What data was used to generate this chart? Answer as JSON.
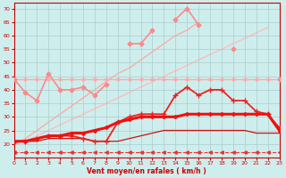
{
  "xlabel": "Vent moyen/en rafales ( km/h )",
  "background_color": "#ceeeed",
  "grid_color": "#aacccc",
  "xlim": [
    0,
    23
  ],
  "ylim": [
    15,
    72
  ],
  "yticks": [
    20,
    25,
    30,
    35,
    40,
    45,
    50,
    55,
    60,
    65,
    70
  ],
  "xticks": [
    0,
    1,
    2,
    3,
    4,
    5,
    6,
    7,
    8,
    9,
    10,
    11,
    12,
    13,
    14,
    15,
    16,
    17,
    18,
    19,
    20,
    21,
    22,
    23
  ],
  "x": [
    0,
    1,
    2,
    3,
    4,
    5,
    6,
    7,
    8,
    9,
    10,
    11,
    12,
    13,
    14,
    15,
    16,
    17,
    18,
    19,
    20,
    21,
    22,
    23
  ],
  "lines": [
    {
      "name": "dashed_bottom",
      "y": [
        17,
        17,
        17,
        17,
        17,
        17,
        17,
        17,
        17,
        17,
        17,
        17,
        17,
        17,
        17,
        17,
        17,
        17,
        17,
        17,
        17,
        17,
        17,
        17
      ],
      "color": "#ee3333",
      "lw": 0.8,
      "ls": "--",
      "marker": "<",
      "ms": 2.5,
      "zorder": 2
    },
    {
      "name": "pink_trend_upper",
      "y": [
        20,
        22,
        25,
        28,
        31,
        34,
        37,
        40,
        43,
        46,
        48,
        51,
        54,
        57,
        60,
        62,
        65,
        null,
        null,
        null,
        null,
        null,
        null,
        null
      ],
      "color": "#ffaaaa",
      "lw": 1.0,
      "ls": "-",
      "marker": null,
      "ms": 0,
      "zorder": 1
    },
    {
      "name": "pink_trend_lower",
      "y": [
        20,
        21,
        23,
        25,
        27,
        29,
        31,
        33,
        35,
        37,
        39,
        41,
        43,
        45,
        47,
        49,
        51,
        53,
        55,
        57,
        59,
        61,
        63,
        null
      ],
      "color": "#ffbbbb",
      "lw": 1.0,
      "ls": "-",
      "marker": null,
      "ms": 0,
      "zorder": 1
    },
    {
      "name": "pink_scatter_upper",
      "y": [
        44,
        39,
        36,
        46,
        40,
        40,
        41,
        38,
        42,
        null,
        57,
        57,
        62,
        null,
        66,
        70,
        64,
        null,
        null,
        55,
        null,
        null,
        null,
        44
      ],
      "color": "#ff8888",
      "lw": 1.2,
      "ls": "-",
      "marker": "D",
      "ms": 2.5,
      "zorder": 3
    },
    {
      "name": "pink_flat_line",
      "y": [
        44,
        44,
        44,
        44,
        44,
        44,
        44,
        44,
        44,
        44,
        44,
        44,
        44,
        44,
        44,
        44,
        44,
        44,
        44,
        44,
        44,
        44,
        44,
        44
      ],
      "color": "#ffaaaa",
      "lw": 1.0,
      "ls": "-",
      "marker": "D",
      "ms": 2.0,
      "zorder": 2
    },
    {
      "name": "red_wavy_upper",
      "y": [
        21,
        21,
        22,
        23,
        23,
        23,
        22,
        21,
        21,
        28,
        30,
        31,
        31,
        31,
        38,
        41,
        38,
        40,
        40,
        36,
        36,
        32,
        31,
        26
      ],
      "color": "#ee2222",
      "lw": 1.3,
      "ls": "-",
      "marker": "+",
      "ms": 4,
      "zorder": 4
    },
    {
      "name": "red_bold_curve",
      "y": [
        21,
        21,
        22,
        23,
        23,
        24,
        24,
        25,
        26,
        28,
        29,
        30,
        30,
        30,
        30,
        31,
        31,
        31,
        31,
        31,
        31,
        31,
        31,
        25
      ],
      "color": "#ee1111",
      "lw": 2.2,
      "ls": "-",
      "marker": "D",
      "ms": 2.0,
      "zorder": 5
    },
    {
      "name": "red_thin_lower",
      "y": [
        21,
        21,
        21,
        22,
        22,
        22,
        22,
        21,
        21,
        21,
        22,
        23,
        24,
        25,
        25,
        25,
        25,
        25,
        25,
        25,
        25,
        24,
        24,
        24
      ],
      "color": "#cc1111",
      "lw": 0.9,
      "ls": "-",
      "marker": null,
      "ms": 0,
      "zorder": 3
    }
  ]
}
